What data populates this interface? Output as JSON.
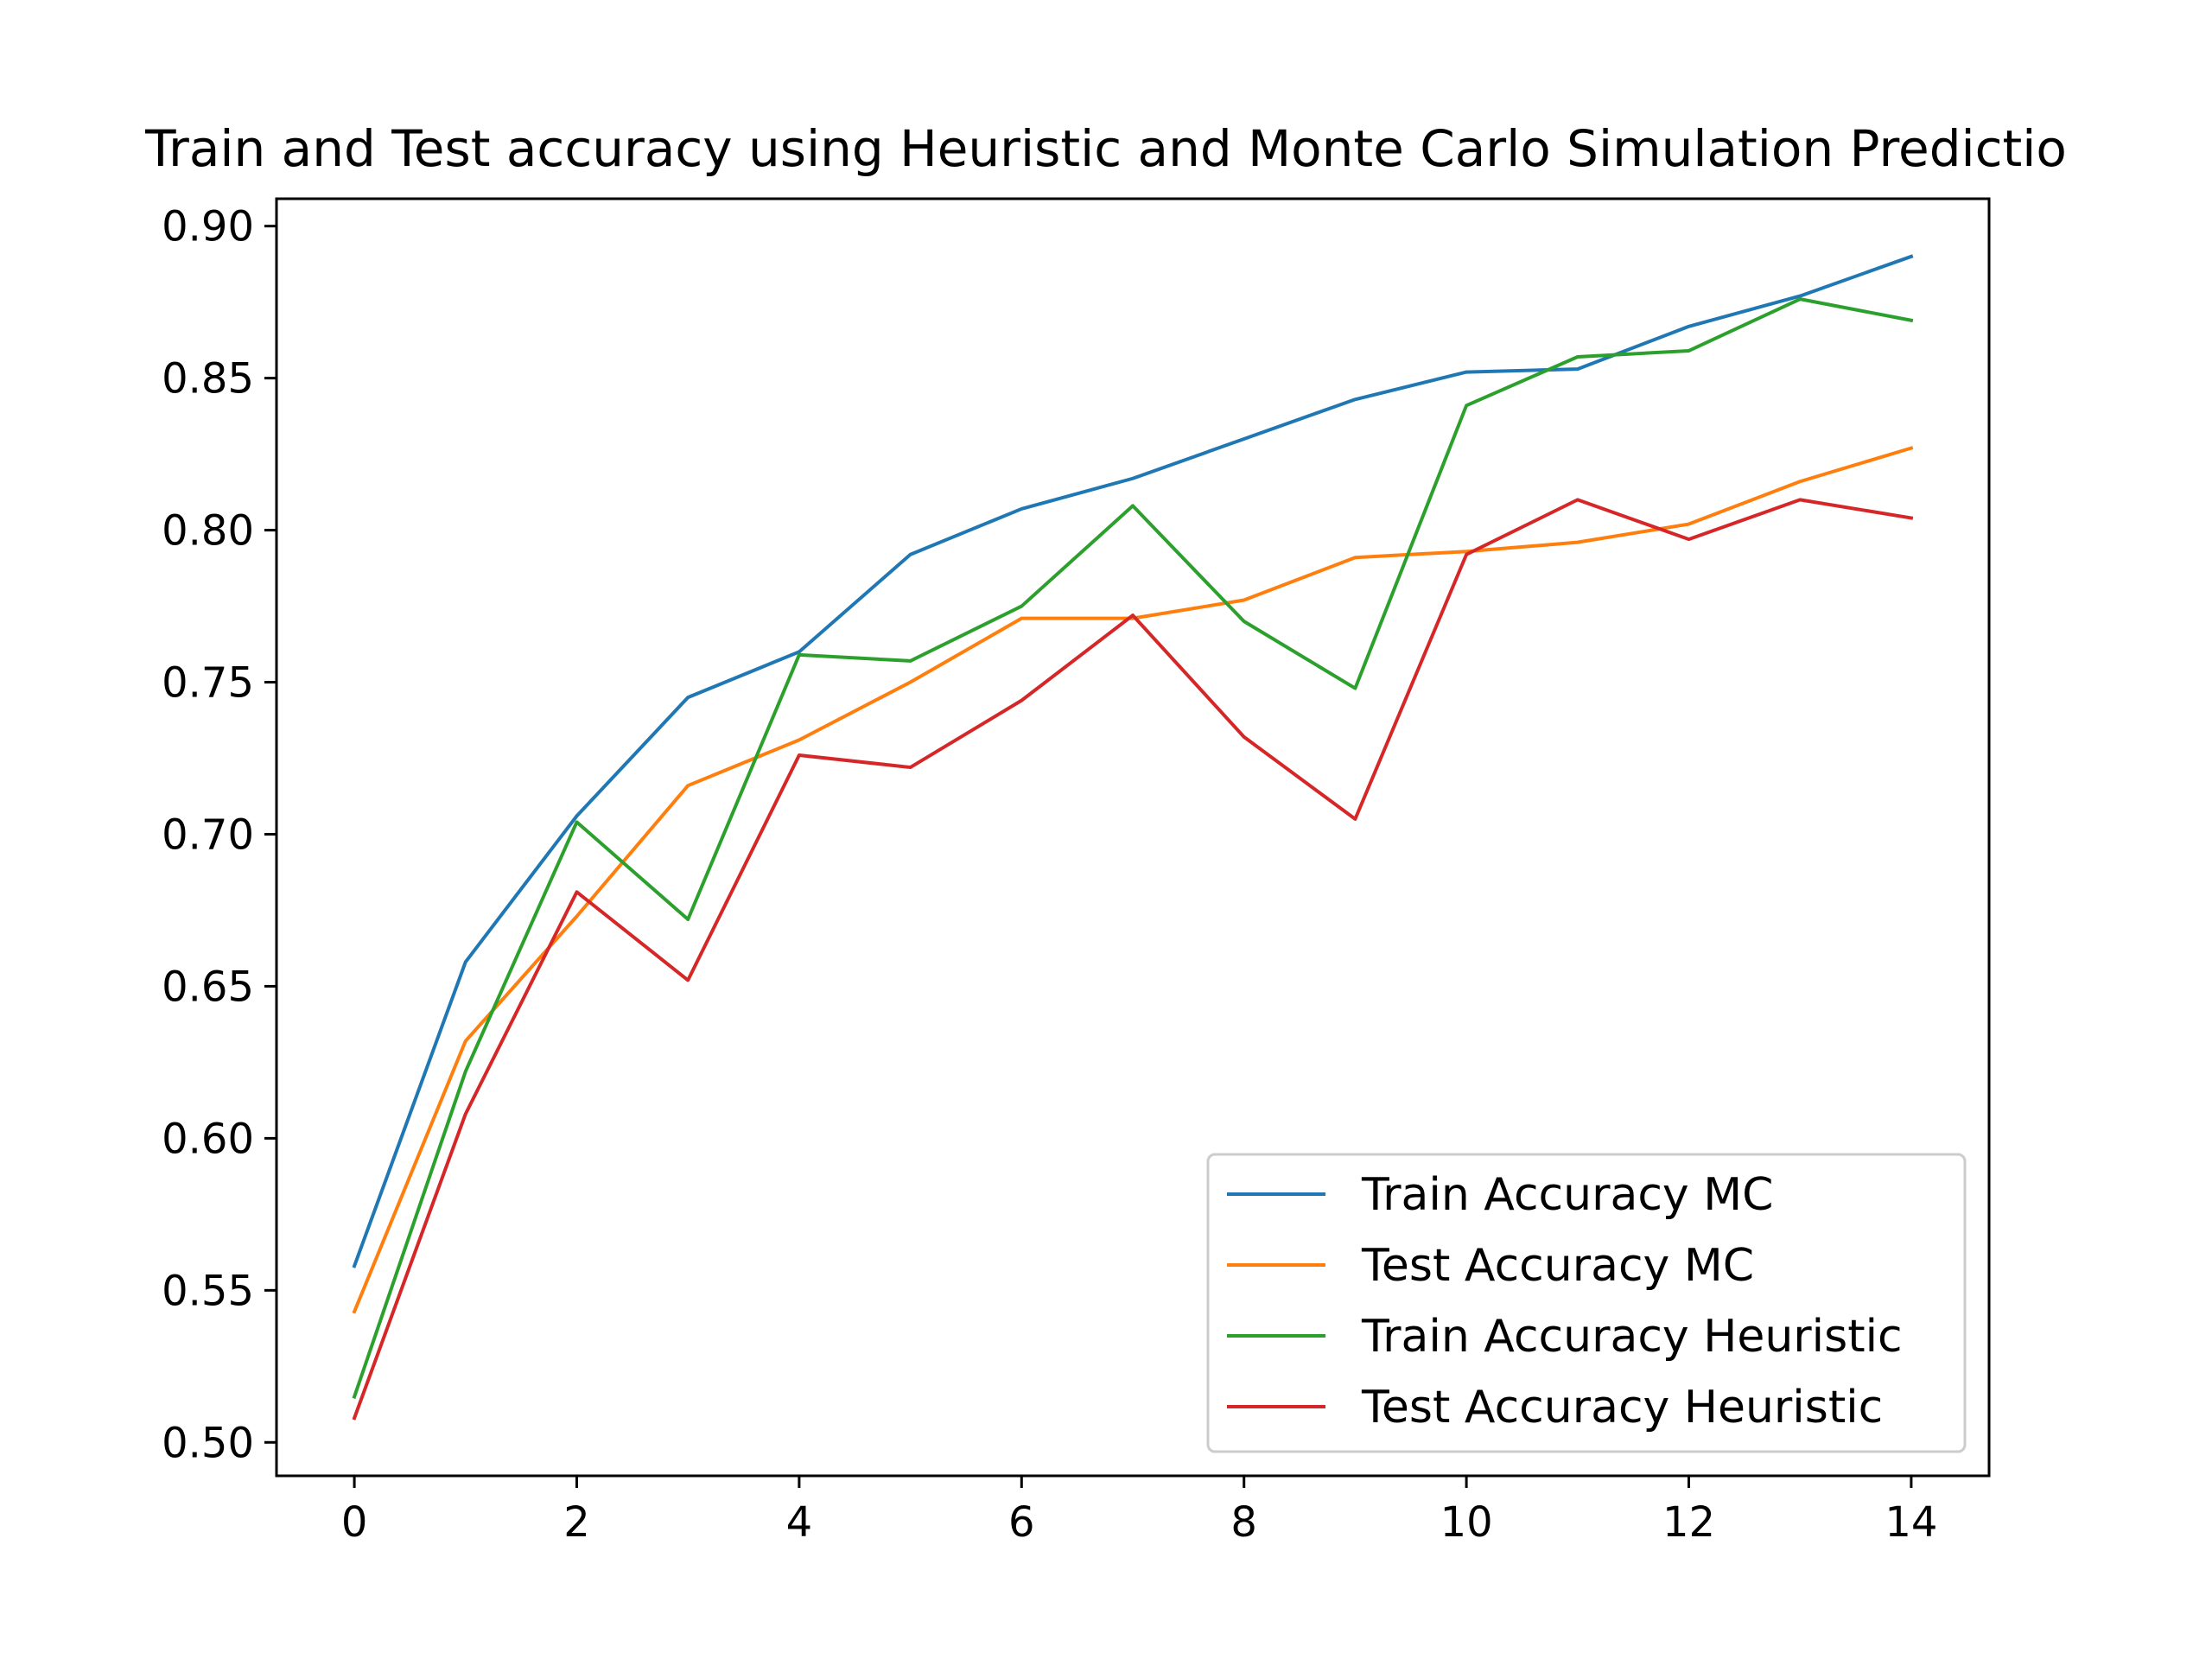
{
  "chart_data": {
    "type": "line",
    "title": "Train and Test accuracy using Heuristic and Monte Carlo Simulation Predictio",
    "xlabel": "",
    "ylabel": "",
    "x": [
      0,
      1,
      2,
      3,
      4,
      5,
      6,
      7,
      8,
      9,
      10,
      11,
      12,
      13,
      14
    ],
    "xlim": [
      -0.7,
      14.7
    ],
    "ylim": [
      0.489,
      0.909
    ],
    "xticks": [
      "0",
      "2",
      "4",
      "6",
      "8",
      "10",
      "12",
      "14"
    ],
    "xtick_values": [
      0,
      2,
      4,
      6,
      8,
      10,
      12,
      14
    ],
    "yticks": [
      "0.50",
      "0.55",
      "0.60",
      "0.65",
      "0.70",
      "0.75",
      "0.80",
      "0.85",
      "0.90"
    ],
    "ytick_values": [
      0.5,
      0.55,
      0.6,
      0.65,
      0.7,
      0.75,
      0.8,
      0.85,
      0.9
    ],
    "grid": false,
    "legend_position": "lower-right",
    "series": [
      {
        "name": "Train Accuracy MC",
        "color": "#1f77b4",
        "values": [
          0.558,
          0.658,
          0.706,
          0.745,
          0.76,
          0.792,
          0.807,
          0.817,
          0.83,
          0.843,
          0.852,
          0.853,
          0.867,
          0.877,
          0.89
        ]
      },
      {
        "name": "Test Accuracy MC",
        "color": "#ff7f0e",
        "values": [
          0.543,
          0.632,
          0.673,
          0.716,
          0.731,
          0.75,
          0.771,
          0.771,
          0.777,
          0.791,
          0.793,
          0.796,
          0.802,
          0.816,
          0.827
        ]
      },
      {
        "name": "Train Accuracy Heuristic",
        "color": "#2ca02c",
        "values": [
          0.515,
          0.622,
          0.704,
          0.672,
          0.759,
          0.757,
          0.775,
          0.808,
          0.77,
          0.748,
          0.841,
          0.857,
          0.859,
          0.876,
          0.869
        ]
      },
      {
        "name": "Test Accuracy Heuristic",
        "color": "#d62728",
        "values": [
          0.508,
          0.608,
          0.681,
          0.652,
          0.726,
          0.722,
          0.744,
          0.772,
          0.732,
          0.705,
          0.792,
          0.81,
          0.797,
          0.81,
          0.804
        ]
      }
    ]
  }
}
